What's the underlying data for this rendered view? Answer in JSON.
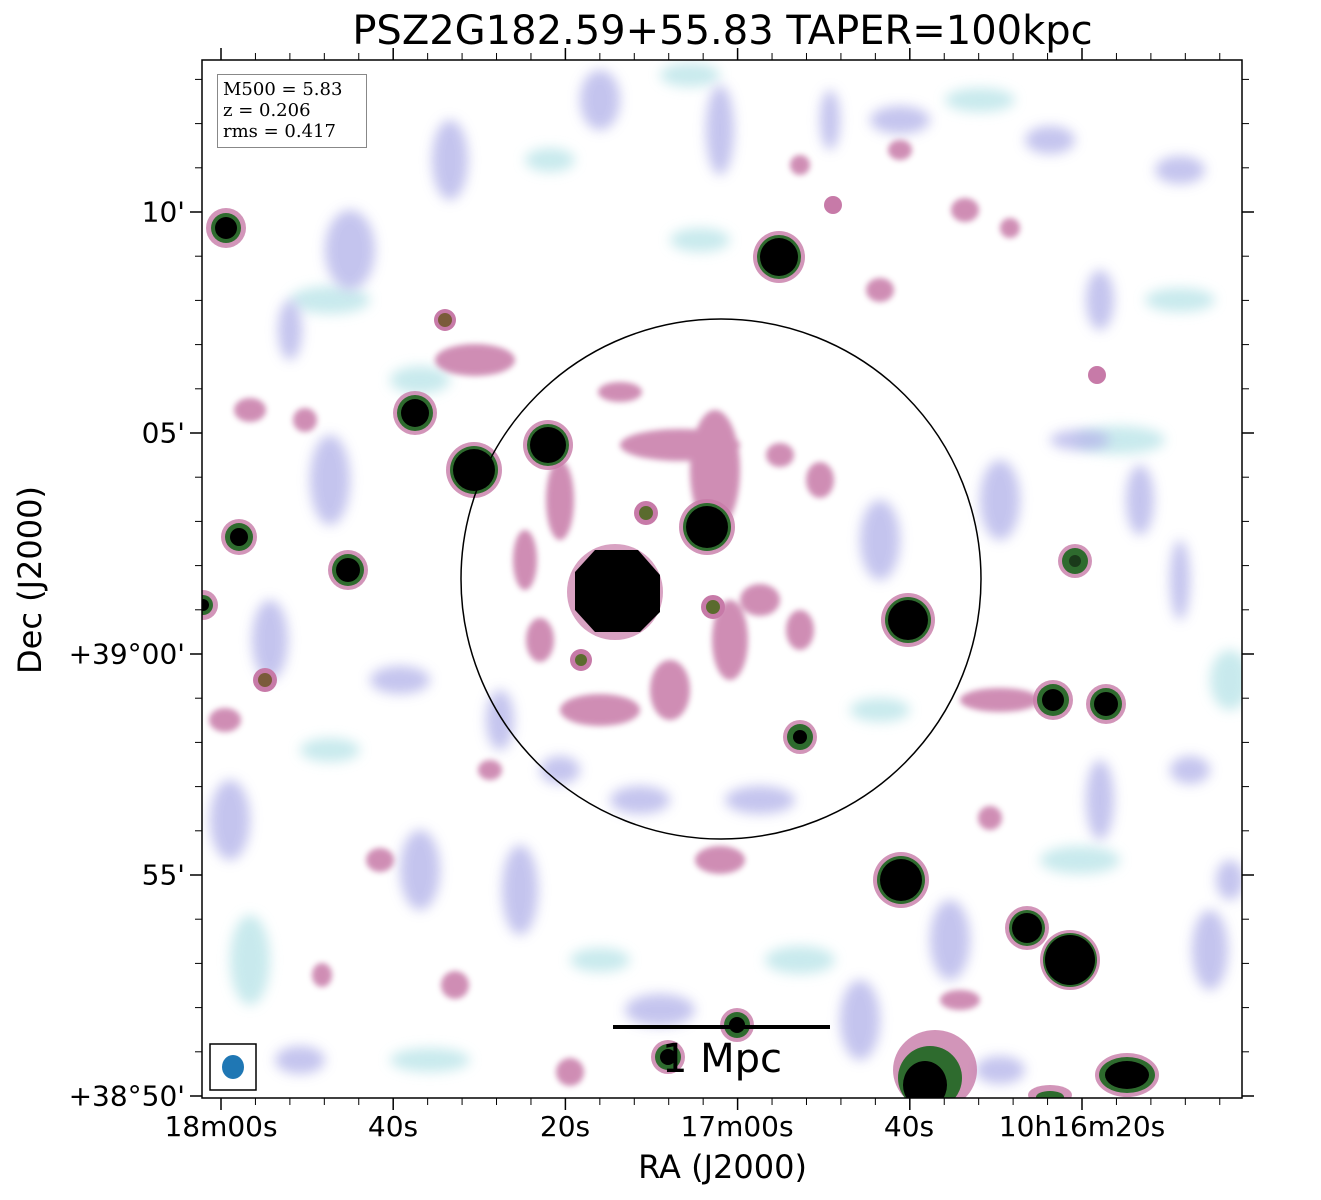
{
  "title": "PSZ2G182.59+55.83 TAPER=100kpc",
  "axes": {
    "xlabel": "RA (J2000)",
    "ylabel": "Dec (J2000)",
    "x_ticks": [
      "18m00s",
      "40s",
      "20s",
      "17m00s",
      "40s",
      "10h16m20s"
    ],
    "y_ticks": [
      "10'",
      "05'",
      "+39°00'",
      "55'",
      "+38°50'"
    ]
  },
  "info": {
    "m500": "M500 = 5.83",
    "z": "z = 0.206",
    "rms": "rms = 0.417"
  },
  "scalebar": {
    "label": "1 Mpc"
  },
  "colors": {
    "source_core": "#000000",
    "source_ring_green": "#2e6b2e",
    "source_halo_pink": "#c77aa8",
    "noise_lavender": "#b6b6ea",
    "noise_cyan": "#bfe6ea",
    "beam": "#1f77b4",
    "circle": "#000000",
    "frame": "#000000"
  }
}
